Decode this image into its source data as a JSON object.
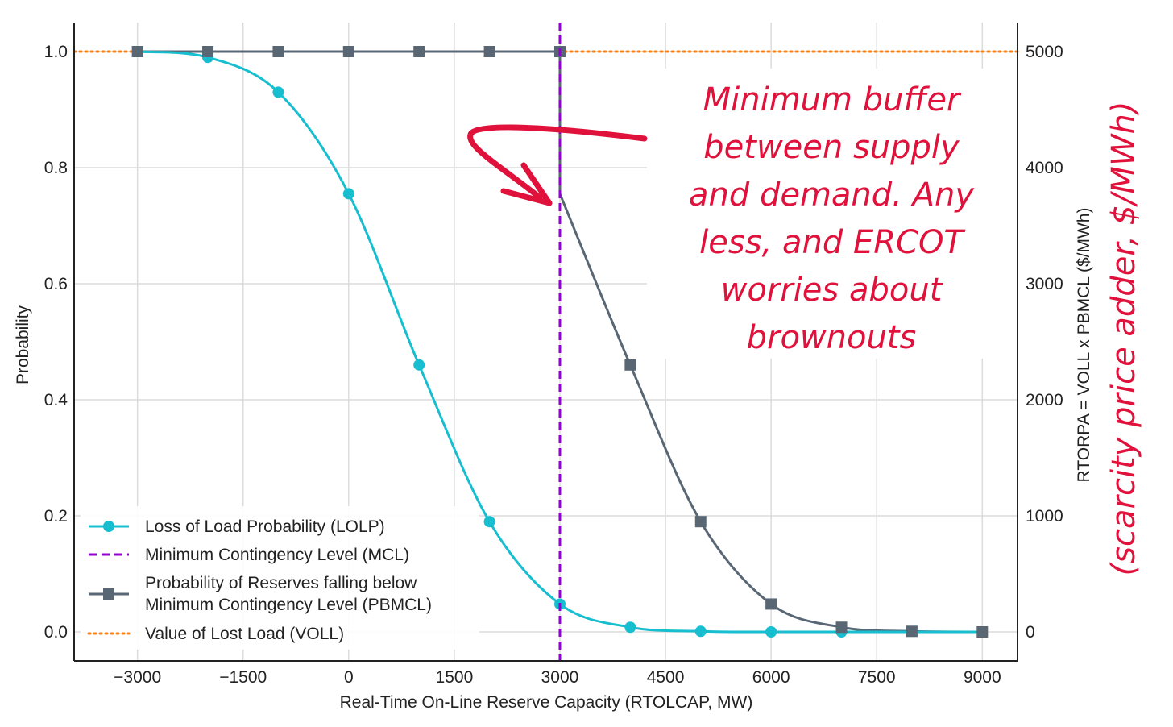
{
  "chart_data": {
    "type": "line",
    "title": "",
    "xlabel": "Real-Time On-Line Reserve Capacity (RTOLCAP, MW)",
    "ylabel": "Probability",
    "y2label": "RTORPA = VOLL x PBMCL ($/MWh)",
    "xlim": [
      -3900,
      9500
    ],
    "ylim": [
      -0.05,
      1.05
    ],
    "y2lim": [
      -250,
      5250
    ],
    "xticks": [
      "−3000",
      "−1500",
      "0",
      "1500",
      "3000",
      "4500",
      "6000",
      "7500",
      "9000"
    ],
    "xtick_values": [
      -3000,
      -1500,
      0,
      1500,
      3000,
      4500,
      6000,
      7500,
      9000
    ],
    "yticks": [
      "0.0",
      "0.2",
      "0.4",
      "0.6",
      "0.8",
      "1.0"
    ],
    "ytick_values": [
      0,
      0.2,
      0.4,
      0.6,
      0.8,
      1.0
    ],
    "y2ticks": [
      "0",
      "1000",
      "2000",
      "3000",
      "4000",
      "5000"
    ],
    "y2tick_values": [
      0,
      1000,
      2000,
      3000,
      4000,
      5000
    ],
    "grid": true,
    "legend_position": "bottom-left",
    "series": [
      {
        "name": "Loss of Load Probability (LOLP)",
        "color": "#17becf",
        "marker": "circle",
        "x": [
          -3000,
          -2000,
          -1000,
          0,
          1000,
          2000,
          3000,
          4000,
          5000,
          6000,
          7000
        ],
        "y": [
          1.0,
          0.99,
          0.93,
          0.755,
          0.46,
          0.19,
          0.048,
          0.008,
          0.001,
          0.0,
          0.0
        ]
      },
      {
        "name": "Minimum Contingency Level (MCL)",
        "color": "#9400d3",
        "style": "dashed",
        "x_value": 3000
      },
      {
        "name": "Probability of Reserves falling below Minimum Contingency Level (PBMCL)",
        "legend_lines": [
          "Probability of Reserves falling below",
          "Minimum Contingency Level (PBMCL)"
        ],
        "color": "#596775",
        "marker": "square",
        "x": [
          -3000,
          -2000,
          -1000,
          0,
          1000,
          2000,
          3000,
          3000,
          4000,
          5000,
          6000,
          7000,
          8000,
          9000
        ],
        "y": [
          1.0,
          1.0,
          1.0,
          1.0,
          1.0,
          1.0,
          1.0,
          0.755,
          0.46,
          0.19,
          0.048,
          0.008,
          0.001,
          0.0
        ]
      },
      {
        "name": "Value of Lost Load (VOLL)",
        "color": "#ff7f0e",
        "style": "dotted",
        "y2_value": 5000
      }
    ],
    "annotations": {
      "note_lines": [
        "Minimum buffer",
        "between supply",
        "and demand. Any",
        "less, and ERCOT",
        "worries about",
        "brownouts"
      ],
      "side_note": "(scarcity price adder, $/MWh)",
      "color": "#e0123c"
    }
  }
}
